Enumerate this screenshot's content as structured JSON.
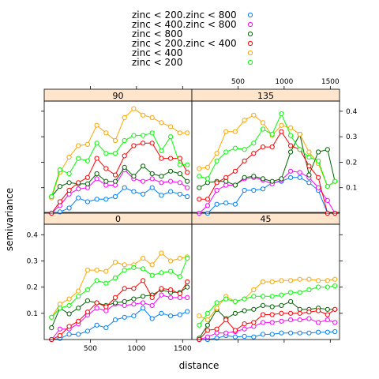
{
  "chart_data": {
    "type": "line",
    "xlabel": "distance",
    "ylabel": "semivariance",
    "xlim": [
      0,
      1600
    ],
    "ylim": [
      0,
      0.44
    ],
    "x_ticks": [
      500,
      1000,
      1500
    ],
    "y_ticks": [
      0.1,
      0.2,
      0.3,
      0.4
    ],
    "y_tick_labels": [
      "0.1",
      "0.2",
      "0.3",
      "0.4"
    ],
    "legend": {
      "position": "top",
      "entries": [
        {
          "label": "zinc < 200.zinc < 800",
          "color": "#0080ff"
        },
        {
          "label": "zinc < 400.zinc < 800",
          "color": "#ff00ff"
        },
        {
          "label": "zinc < 800",
          "color": "#006400"
        },
        {
          "label": "zinc < 200.zinc < 400",
          "color": "#ff0000"
        },
        {
          "label": "zinc < 400",
          "color": "#ffa500"
        },
        {
          "label": "zinc < 200",
          "color": "#00ff00"
        }
      ]
    },
    "panels": [
      {
        "strip": "0",
        "x": [
          80,
          170,
          270,
          370,
          470,
          570,
          670,
          770,
          870,
          970,
          1070,
          1170,
          1270,
          1370,
          1470,
          1550
        ],
        "series": [
          {
            "color": "#0080ff",
            "values": [
              0.0,
              0.004,
              0.02,
              0.02,
              0.032,
              0.055,
              0.045,
              0.075,
              0.085,
              0.09,
              0.12,
              0.08,
              0.1,
              0.09,
              0.095,
              0.107
            ]
          },
          {
            "color": "#ff00ff",
            "values": [
              0.0,
              0.04,
              0.04,
              0.06,
              0.093,
              0.12,
              0.11,
              0.135,
              0.13,
              0.135,
              0.14,
              0.13,
              0.17,
              0.16,
              0.16,
              0.16
            ]
          },
          {
            "color": "#006400",
            "values": [
              0.045,
              0.12,
              0.098,
              0.12,
              0.148,
              0.14,
              0.13,
              0.14,
              0.145,
              0.155,
              0.165,
              0.17,
              0.19,
              0.18,
              0.18,
              0.2
            ]
          },
          {
            "color": "#ff0000",
            "values": [
              0.0,
              0.015,
              0.05,
              0.07,
              0.105,
              0.14,
              0.125,
              0.16,
              0.195,
              0.195,
              0.225,
              0.16,
              0.195,
              0.19,
              0.175,
              0.22
            ]
          },
          {
            "color": "#ffa500",
            "values": [
              0.085,
              0.135,
              0.155,
              0.185,
              0.265,
              0.265,
              0.26,
              0.295,
              0.285,
              0.285,
              0.31,
              0.285,
              0.33,
              0.3,
              0.31,
              0.315
            ]
          },
          {
            "color": "#00ff00",
            "values": [
              0.085,
              0.12,
              0.13,
              0.165,
              0.19,
              0.225,
              0.215,
              0.235,
              0.265,
              0.275,
              0.27,
              0.245,
              0.255,
              0.26,
              0.24,
              0.31
            ]
          }
        ]
      },
      {
        "strip": "45",
        "x": [
          80,
          170,
          270,
          370,
          470,
          570,
          670,
          770,
          870,
          970,
          1070,
          1170,
          1270,
          1370,
          1470,
          1550
        ],
        "series": [
          {
            "color": "#0080ff",
            "values": [
              0.0,
              0.0,
              0.005,
              0.015,
              0.01,
              0.012,
              0.01,
              0.02,
              0.02,
              0.025,
              0.025,
              0.025,
              0.025,
              0.028,
              0.028,
              0.03
            ]
          },
          {
            "color": "#ff00ff",
            "values": [
              0.0,
              0.01,
              0.025,
              0.025,
              0.03,
              0.04,
              0.05,
              0.065,
              0.065,
              0.07,
              0.075,
              0.075,
              0.08,
              0.065,
              0.075,
              0.065
            ]
          },
          {
            "color": "#006400",
            "values": [
              0.005,
              0.055,
              0.115,
              0.08,
              0.1,
              0.11,
              0.115,
              0.13,
              0.125,
              0.13,
              0.145,
              0.115,
              0.115,
              0.12,
              0.115,
              0.115
            ]
          },
          {
            "color": "#ff0000",
            "values": [
              0.0,
              0.035,
              0.04,
              0.075,
              0.035,
              0.06,
              0.065,
              0.095,
              0.095,
              0.1,
              0.1,
              0.1,
              0.105,
              0.11,
              0.095,
              0.115
            ]
          },
          {
            "color": "#ffa500",
            "values": [
              0.09,
              0.075,
              0.12,
              0.165,
              0.145,
              0.155,
              0.19,
              0.22,
              0.22,
              0.225,
              0.225,
              0.23,
              0.23,
              0.225,
              0.225,
              0.23
            ]
          },
          {
            "color": "#00ff00",
            "values": [
              0.055,
              0.1,
              0.14,
              0.155,
              0.145,
              0.155,
              0.165,
              0.165,
              0.165,
              0.17,
              0.18,
              0.18,
              0.19,
              0.2,
              0.2,
              0.205
            ]
          }
        ]
      },
      {
        "strip": "90",
        "x": [
          80,
          170,
          270,
          370,
          470,
          570,
          670,
          770,
          870,
          970,
          1070,
          1170,
          1270,
          1370,
          1470,
          1550
        ],
        "series": [
          {
            "color": "#0080ff",
            "values": [
              0.0,
              0.005,
              0.02,
              0.06,
              0.045,
              0.055,
              0.055,
              0.065,
              0.1,
              0.085,
              0.075,
              0.1,
              0.07,
              0.085,
              0.075,
              0.065
            ]
          },
          {
            "color": "#ff00ff",
            "values": [
              0.0,
              0.03,
              0.075,
              0.095,
              0.1,
              0.135,
              0.11,
              0.11,
              0.17,
              0.135,
              0.125,
              0.135,
              0.12,
              0.125,
              0.12,
              0.1
            ]
          },
          {
            "color": "#006400",
            "values": [
              0.065,
              0.105,
              0.12,
              0.115,
              0.115,
              0.155,
              0.125,
              0.125,
              0.18,
              0.145,
              0.185,
              0.155,
              0.145,
              0.165,
              0.155,
              0.125
            ]
          },
          {
            "color": "#ff0000",
            "values": [
              0.0,
              0.045,
              0.09,
              0.12,
              0.14,
              0.215,
              0.175,
              0.15,
              0.225,
              0.265,
              0.275,
              0.275,
              0.215,
              0.215,
              0.215,
              0.16
            ]
          },
          {
            "color": "#ffa500",
            "values": [
              0.06,
              0.16,
              0.22,
              0.265,
              0.27,
              0.345,
              0.315,
              0.285,
              0.375,
              0.41,
              0.385,
              0.375,
              0.355,
              0.34,
              0.315,
              0.315
            ]
          },
          {
            "color": "#00ff00",
            "values": [
              0.065,
              0.17,
              0.155,
              0.215,
              0.205,
              0.275,
              0.235,
              0.235,
              0.285,
              0.305,
              0.305,
              0.315,
              0.245,
              0.3,
              0.19,
              0.19
            ]
          }
        ]
      },
      {
        "strip": "135",
        "x": [
          80,
          170,
          270,
          370,
          470,
          570,
          670,
          770,
          870,
          970,
          1070,
          1170,
          1270,
          1370,
          1470,
          1550
        ],
        "series": [
          {
            "color": "#0080ff",
            "values": [
              0.0,
              0.0,
              0.035,
              0.04,
              0.035,
              0.09,
              0.09,
              0.095,
              0.12,
              0.125,
              0.14,
              0.14,
              0.12,
              0.09,
              0.0,
              0.0
            ]
          },
          {
            "color": "#ff00ff",
            "values": [
              0.0,
              0.03,
              0.09,
              0.11,
              0.11,
              0.135,
              0.14,
              0.13,
              0.115,
              0.13,
              0.165,
              0.16,
              0.14,
              0.1,
              0.05,
              0.0
            ]
          },
          {
            "color": "#006400",
            "values": [
              0.1,
              0.12,
              0.125,
              0.125,
              0.11,
              0.14,
              0.145,
              0.135,
              0.125,
              0.135,
              0.24,
              0.31,
              0.15,
              0.24,
              0.25,
              0.125
            ]
          },
          {
            "color": "#ff0000",
            "values": [
              0.055,
              0.055,
              0.12,
              0.14,
              0.165,
              0.205,
              0.235,
              0.26,
              0.26,
              0.32,
              0.265,
              0.25,
              0.185,
              0.14,
              0.0,
              0.0
            ]
          },
          {
            "color": "#ffa500",
            "values": [
              0.175,
              0.18,
              0.235,
              0.32,
              0.32,
              0.365,
              0.385,
              0.355,
              0.305,
              0.345,
              0.335,
              0.31,
              0.24,
              0.195,
              0.105,
              0.125
            ]
          },
          {
            "color": "#00ff00",
            "values": [
              0.145,
              0.135,
              0.205,
              0.24,
              0.255,
              0.25,
              0.275,
              0.33,
              0.31,
              0.39,
              0.305,
              0.25,
              0.22,
              0.205,
              0.105,
              0.125
            ]
          }
        ]
      }
    ]
  }
}
